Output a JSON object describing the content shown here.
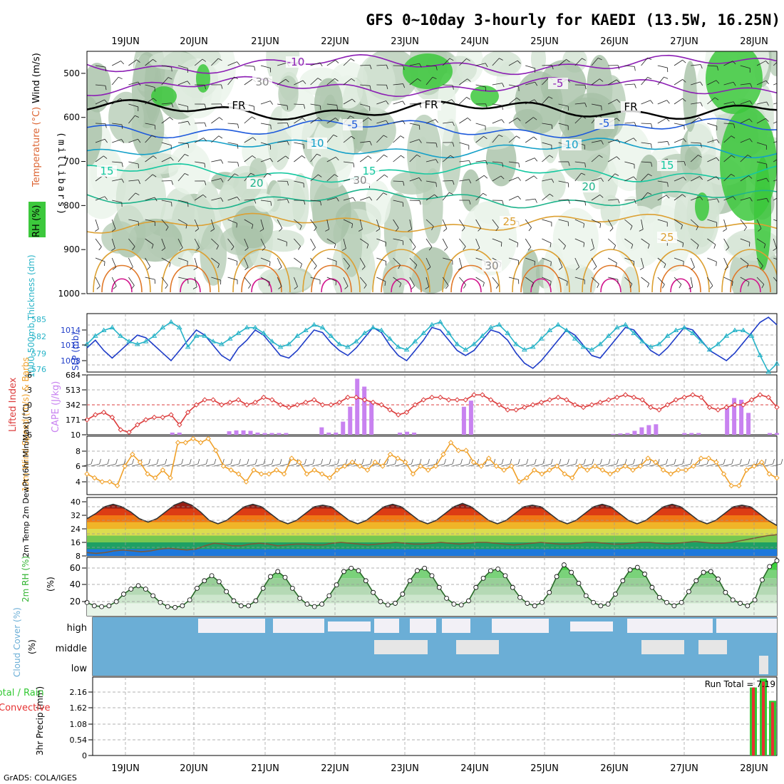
{
  "title": "GFS 0~10day 3-hourly for KAEDI (13.5W, 16.25N)",
  "footer": "GrADS: COLA/IGES",
  "dates": [
    "19JUN",
    "20JUN",
    "21JUN",
    "22JUN",
    "23JUN",
    "24JUN",
    "25JUN",
    "26JUN",
    "27JUN",
    "28JUN"
  ],
  "colors": {
    "rh_green": "#3cc83c",
    "temp_purple": "#8c1eb4",
    "temp_blue": "#1e5adc",
    "temp_cyan": "#14a0c8",
    "temp_teal": "#14c8a0",
    "temp_orange": "#dca032",
    "slp_blue": "#1e3cc8",
    "thick_cyan": "#28b4c8",
    "lifted_red": "#dc3c3c",
    "cape_purple": "#c882f0",
    "wind_orange": "#f0a028",
    "cloud_blue": "#6baed6",
    "rain_green": "#32c832",
    "conv_red": "#e63232"
  },
  "chart_data": [
    {
      "type": "heatmap",
      "name": "upper",
      "ylabel_parts": [
        "RH (%)",
        "Temperature (°C)",
        "Wind (m/s)"
      ],
      "yaxis_label": "(millibars)",
      "yticks": [
        "500",
        "600",
        "700",
        "800",
        "900",
        "1000"
      ],
      "ylim": [
        450,
        1000
      ],
      "contour_labels": [
        "-10",
        "-5",
        "FR",
        "FR",
        "FR",
        "-5",
        "-5",
        "10",
        "10",
        "15",
        "15",
        "15",
        "20",
        "20",
        "25",
        "25",
        "30",
        "30",
        "30"
      ],
      "isotherms": [
        {
          "label": "-10",
          "pressure": 480
        },
        {
          "label": "-5",
          "pressure": 530
        },
        {
          "label": "FR",
          "pressure": 583
        },
        {
          "label": "-5",
          "pressure": 625
        },
        {
          "label": "10",
          "pressure": 670
        },
        {
          "label": "15",
          "pressure": 725
        },
        {
          "label": "20",
          "pressure": 785
        },
        {
          "label": "25",
          "pressure": 840
        }
      ]
    },
    {
      "type": "line",
      "name": "slp_thickness",
      "ylabel_left": "1000-500mb Thickness (dm)",
      "ylabel_right": "SLP (mb)",
      "yticks_left": [
        "585",
        "582",
        "579",
        "576"
      ],
      "yticks_right": [
        "1014",
        "1011",
        "1008"
      ],
      "series": [
        {
          "name": "SLP (mb)",
          "values": [
            1010.5,
            1012,
            1010,
            1008.5,
            1010,
            1011.5,
            1013,
            1012.5,
            1011,
            1009.5,
            1008,
            1010,
            1012,
            1014,
            1013,
            1011,
            1009,
            1008,
            1010.5,
            1012,
            1014,
            1013,
            1011,
            1009,
            1008.5,
            1010,
            1012,
            1014,
            1013.5,
            1011.5,
            1010,
            1009,
            1010.5,
            1012.5,
            1014.5,
            1013.5,
            1011,
            1009,
            1008,
            1010,
            1012,
            1014.5,
            1014,
            1012,
            1010,
            1009,
            1010,
            1012,
            1014,
            1013.5,
            1012,
            1009.5,
            1007.5,
            1006.5,
            1008,
            1010,
            1012,
            1014,
            1013,
            1011,
            1009,
            1008.5,
            1010.5,
            1012.5,
            1014.5,
            1014,
            1012,
            1010,
            1009,
            1010.5,
            1012.5,
            1014.5,
            1014,
            1012,
            1010,
            1009,
            1008,
            1009.5,
            1011.5,
            1013.5,
            1015.5,
            1016.5,
            1015
          ]
        },
        {
          "name": "Thickness (dm)",
          "values": [
            580.5,
            582,
            583,
            583.5,
            582,
            581,
            580.5,
            581,
            582,
            583.5,
            584.5,
            583.5,
            580,
            582,
            582,
            581,
            580.5,
            581.5,
            582.5,
            583.5,
            583.5,
            582.5,
            581,
            580,
            580.5,
            582,
            583,
            584,
            583.5,
            582,
            580.5,
            580,
            581,
            582.5,
            583.5,
            583,
            581.5,
            580,
            579.5,
            581,
            582.5,
            584,
            584.5,
            582.5,
            580.5,
            579.5,
            580.5,
            582,
            583.5,
            584,
            582.5,
            580.5,
            579.5,
            580,
            581.5,
            583,
            584,
            583,
            581.5,
            580,
            579.5,
            580.5,
            582,
            583.5,
            584,
            582.5,
            581,
            580,
            580.5,
            582,
            583,
            583.5,
            582.5,
            581,
            579.5,
            580.5,
            582,
            583,
            583,
            582,
            578.5,
            575.5,
            577
          ]
        }
      ]
    },
    {
      "type": "bar",
      "name": "lifted_cape",
      "ylabel_left": "Lifted Index",
      "ylabel_right": "CAPE (J/kg)",
      "yticks_left": [
        "-6",
        "-3",
        "0",
        "3",
        "6"
      ],
      "yticks_right": [
        "684",
        "513",
        "342",
        "171",
        "10"
      ],
      "series": [
        {
          "name": "Lifted Index",
          "values": [
            3,
            2,
            1.5,
            2.5,
            5,
            5.5,
            4,
            3,
            2.5,
            2.5,
            2,
            4,
            1.5,
            0,
            -1,
            -1,
            0,
            -0.5,
            -1,
            0,
            -0.5,
            -1.5,
            -1,
            0,
            0.5,
            0,
            -0.5,
            -1,
            0,
            0,
            -0.5,
            -1.5,
            -1.5,
            -1,
            -0.5,
            0,
            1,
            2,
            1.5,
            0,
            -1,
            -1.5,
            -1.5,
            -1,
            -1,
            -1,
            -2,
            -2,
            -1,
            0,
            1,
            1,
            0.5,
            0,
            -0.5,
            -1,
            -1.5,
            -1,
            0,
            0.5,
            0,
            -0.5,
            -1,
            -1.5,
            -2,
            -1.5,
            -1,
            0.5,
            1,
            0,
            -1,
            -1.5,
            -2,
            -1.5,
            0.5,
            1,
            0.5,
            0,
            0,
            -1,
            -2,
            -1.5,
            0.5
          ]
        },
        {
          "name": "CAPE (J/kg)",
          "values": [
            0,
            0,
            0,
            0,
            0,
            0,
            0,
            0,
            0,
            0,
            0,
            0,
            25,
            25,
            0,
            0,
            0,
            0,
            0,
            0,
            40,
            50,
            50,
            45,
            25,
            20,
            20,
            20,
            20,
            0,
            0,
            0,
            0,
            85,
            25,
            25,
            150,
            320,
            640,
            550,
            380,
            0,
            0,
            0,
            25,
            35,
            25,
            0,
            0,
            0,
            0,
            0,
            0,
            320,
            390,
            0,
            0,
            0,
            0,
            0,
            0,
            0,
            0,
            0,
            0,
            0,
            0,
            0,
            0,
            0,
            0,
            0,
            0,
            0,
            10,
            15,
            20,
            45,
            85,
            110,
            120,
            0,
            0,
            0,
            20,
            20,
            20,
            0,
            0,
            0,
            320,
            420,
            400,
            250,
            0,
            0,
            20,
            20
          ]
        }
      ]
    },
    {
      "type": "line",
      "name": "wind10",
      "ylabel": "10m Wind Speed (m/s) & Barbs",
      "yticks": [
        "8",
        "6",
        "4"
      ],
      "series": [
        {
          "name": "10m Wind Speed (m/s)",
          "values": [
            5,
            4.5,
            4,
            4,
            3.5,
            6,
            7.5,
            6.5,
            5,
            4.5,
            5.5,
            4.5,
            9,
            9,
            9.5,
            9,
            9.5,
            8,
            6,
            5.5,
            5,
            4,
            5.5,
            5,
            5,
            5.5,
            5,
            7,
            6.5,
            5,
            5.5,
            5,
            4.5,
            5.5,
            6,
            6.5,
            6,
            5.5,
            6.5,
            6,
            7.5,
            7,
            6.5,
            5,
            6,
            5.5,
            6,
            7.5,
            9,
            8,
            8,
            6.5,
            6,
            7,
            6,
            5.5,
            6,
            4,
            4.5,
            5.5,
            5,
            5.5,
            6,
            5,
            4.5,
            6,
            5.5,
            6,
            5.5,
            5,
            5.5,
            6,
            5.5,
            6,
            7,
            6.5,
            5.5,
            5,
            5.5,
            5.5,
            6,
            7,
            7,
            6.5,
            5,
            3.5,
            3.5,
            5.5,
            6,
            6.5,
            5,
            4.5
          ]
        }
      ]
    },
    {
      "type": "area",
      "name": "t2m",
      "ylabel": "2m Temp 2m DewPt (6hr Min/Max) (°C)",
      "yticks": [
        "40",
        "32",
        "24",
        "16",
        "8"
      ],
      "series": [
        {
          "name": "2m Temp",
          "values": [
            30,
            33,
            37,
            38.5,
            37,
            34,
            30,
            28,
            30,
            34,
            38,
            40,
            38,
            34,
            29,
            27,
            29,
            33,
            37,
            38.5,
            37,
            33,
            29,
            27,
            29,
            33,
            37,
            38,
            37,
            33,
            29,
            27,
            29,
            33,
            37,
            38.5,
            37,
            33,
            29,
            27,
            29,
            33,
            37,
            39,
            37,
            33,
            29,
            27,
            29,
            33,
            37,
            38,
            37,
            33,
            29,
            27,
            29,
            33,
            37,
            38.5,
            37,
            33,
            29,
            27,
            29,
            33,
            37,
            38.5,
            37,
            33,
            29,
            27,
            29,
            33,
            37,
            38,
            37,
            33,
            29,
            26
          ]
        },
        {
          "name": "2m DewPt",
          "values": [
            10,
            9.5,
            10,
            11,
            11.5,
            11,
            10.5,
            11,
            12,
            12.5,
            12,
            11.5,
            12,
            14,
            15.5,
            15,
            14,
            14,
            15,
            15.5,
            15,
            14,
            14.5,
            15,
            15,
            14.5,
            14.5,
            15.5,
            16,
            15.5,
            15,
            14.5,
            15,
            15.5,
            16,
            15.5,
            15,
            15,
            15.5,
            16,
            15.5,
            15,
            15.5,
            16,
            16,
            15.5,
            15,
            14.5,
            15,
            15.5,
            16,
            15.5,
            15,
            15,
            15.5,
            16,
            16,
            15.5,
            15,
            15,
            15.5,
            16,
            16,
            15.5,
            15,
            15.5,
            16,
            16.5,
            16,
            15.5,
            15.5,
            16,
            17,
            18,
            19,
            20,
            20.5
          ]
        }
      ]
    },
    {
      "type": "area",
      "name": "rh2m",
      "ylabel": "2m RH (%)",
      "yticks": [
        "60",
        "40",
        "20"
      ],
      "series": [
        {
          "name": "2m RH",
          "values": [
            21,
            17,
            16,
            17,
            22,
            31,
            37,
            41,
            37,
            29,
            21,
            16,
            15,
            17,
            24,
            38,
            47,
            53,
            46,
            34,
            23,
            17,
            17,
            23,
            38,
            52,
            58,
            51,
            38,
            26,
            19,
            16,
            19,
            29,
            42,
            58,
            62,
            59,
            47,
            33,
            22,
            18,
            20,
            31,
            47,
            59,
            62,
            53,
            39,
            26,
            19,
            18,
            23,
            39,
            50,
            59,
            61,
            53,
            39,
            27,
            20,
            17,
            21,
            33,
            52,
            66,
            57,
            44,
            29,
            21,
            17,
            19,
            31,
            47,
            60,
            63,
            55,
            39,
            27,
            21,
            17,
            21,
            34,
            47,
            57,
            58,
            49,
            33,
            24,
            20,
            17,
            24,
            48,
            64,
            71
          ]
        }
      ]
    },
    {
      "type": "heatmap",
      "name": "cloud",
      "ylabel": "Cloud Cover (%)",
      "levels": [
        "high",
        "middle",
        "low"
      ]
    },
    {
      "type": "bar",
      "name": "precip",
      "ylabel": "3hr Precip (mm)",
      "legend": [
        "Total / Rain",
        "Convective"
      ],
      "run_total": "Run Total = 7.19",
      "yticks": [
        "2.16",
        "1.62",
        "1.08",
        "0.54",
        "0"
      ],
      "series": [
        {
          "name": "Total",
          "values": [
            2.3,
            2.6,
            1.85
          ]
        },
        {
          "name": "Convective",
          "values": [
            2.3,
            2.5,
            1.8
          ]
        }
      ]
    }
  ]
}
